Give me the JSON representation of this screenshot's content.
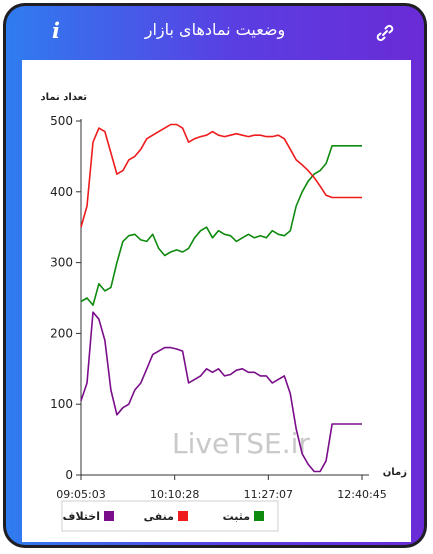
{
  "header": {
    "title": "وضعیت نمادهای بازار",
    "info_icon": "info-icon",
    "link_icon": "link-icon"
  },
  "watermark": "LiveTSE.ir",
  "chart_data": {
    "type": "line",
    "ylabel": "تعداد نماد",
    "xlabel": "زمان",
    "ylim": [
      0,
      500
    ],
    "yticks": [
      0,
      100,
      200,
      300,
      400,
      500
    ],
    "xticks": [
      "09:05:03",
      "10:10:28",
      "11:27:07",
      "12:40:45"
    ],
    "x": [
      "09:05",
      "09:06",
      "09:08",
      "09:10",
      "09:12",
      "09:15",
      "09:20",
      "09:25",
      "09:30",
      "09:35",
      "09:40",
      "09:45",
      "09:50",
      "09:55",
      "10:00",
      "10:05",
      "10:10",
      "10:15",
      "10:20",
      "10:25",
      "10:30",
      "10:35",
      "10:40",
      "10:45",
      "10:50",
      "10:55",
      "11:00",
      "11:05",
      "11:10",
      "11:15",
      "11:20",
      "11:27",
      "11:35",
      "11:45",
      "11:55",
      "12:00",
      "12:05",
      "12:10",
      "12:15",
      "12:20",
      "12:25",
      "12:28",
      "12:31",
      "12:33",
      "12:35",
      "12:37",
      "12:38",
      "12:40"
    ],
    "series": [
      {
        "name": "مثبت",
        "color": "#0f8a0f",
        "values": [
          245,
          250,
          240,
          270,
          260,
          265,
          300,
          330,
          338,
          340,
          332,
          330,
          340,
          320,
          310,
          315,
          318,
          315,
          320,
          335,
          345,
          350,
          335,
          345,
          340,
          338,
          330,
          335,
          340,
          335,
          338,
          335,
          345,
          340,
          338,
          345,
          380,
          400,
          415,
          425,
          430,
          440,
          465,
          465,
          465,
          465,
          465,
          465
        ]
      },
      {
        "name": "منفی",
        "color": "#ee1c1c",
        "values": [
          350,
          380,
          470,
          490,
          485,
          455,
          425,
          430,
          445,
          450,
          460,
          475,
          480,
          485,
          490,
          495,
          495,
          490,
          470,
          475,
          478,
          480,
          485,
          480,
          478,
          480,
          482,
          480,
          478,
          480,
          480,
          478,
          478,
          480,
          475,
          460,
          445,
          438,
          430,
          420,
          408,
          395,
          392,
          392,
          392,
          392,
          392,
          392
        ]
      },
      {
        "name": "اختلاف",
        "color": "#7a0d8a",
        "values": [
          105,
          130,
          230,
          220,
          190,
          120,
          85,
          95,
          100,
          120,
          130,
          150,
          170,
          175,
          180,
          180,
          178,
          175,
          130,
          135,
          140,
          150,
          145,
          150,
          140,
          142,
          148,
          150,
          145,
          145,
          140,
          140,
          130,
          135,
          140,
          115,
          65,
          30,
          15,
          5,
          5,
          20,
          72,
          72,
          72,
          72,
          72,
          72
        ]
      }
    ],
    "legend_placement": "bottom-left",
    "grid": false
  }
}
